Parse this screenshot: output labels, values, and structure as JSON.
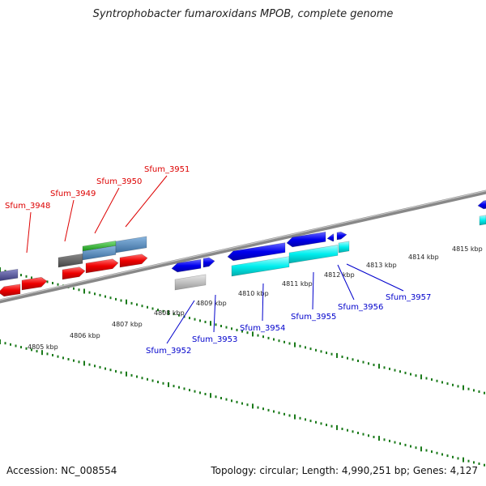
{
  "title": "Syntrophobacter fumaroxidans MPOB, complete genome",
  "footer": {
    "accession": "Accession: NC_008554",
    "summary": "Topology: circular; Length: 4,990,251 bp; Genes: 4,127"
  },
  "colors": {
    "top_labels": "#dd0000",
    "bottom_labels": "#0000cc",
    "backbone": "#888888",
    "ticks": "#1a7a1a"
  },
  "ticks": [
    "4805 kbp",
    "4806 kbp",
    "4807 kbp",
    "4808 kbp",
    "4809 kbp",
    "4810 kbp",
    "4811 kbp",
    "4812 kbp",
    "4813 kbp",
    "4814 kbp",
    "4815 kbp"
  ],
  "top_genes": [
    "Sfum_3948",
    "Sfum_3949",
    "Sfum_3950",
    "Sfum_3951"
  ],
  "bottom_genes": [
    "Sfum_3952",
    "Sfum_3953",
    "Sfum_3954",
    "Sfum_3955",
    "Sfum_3956",
    "Sfum_3957"
  ]
}
